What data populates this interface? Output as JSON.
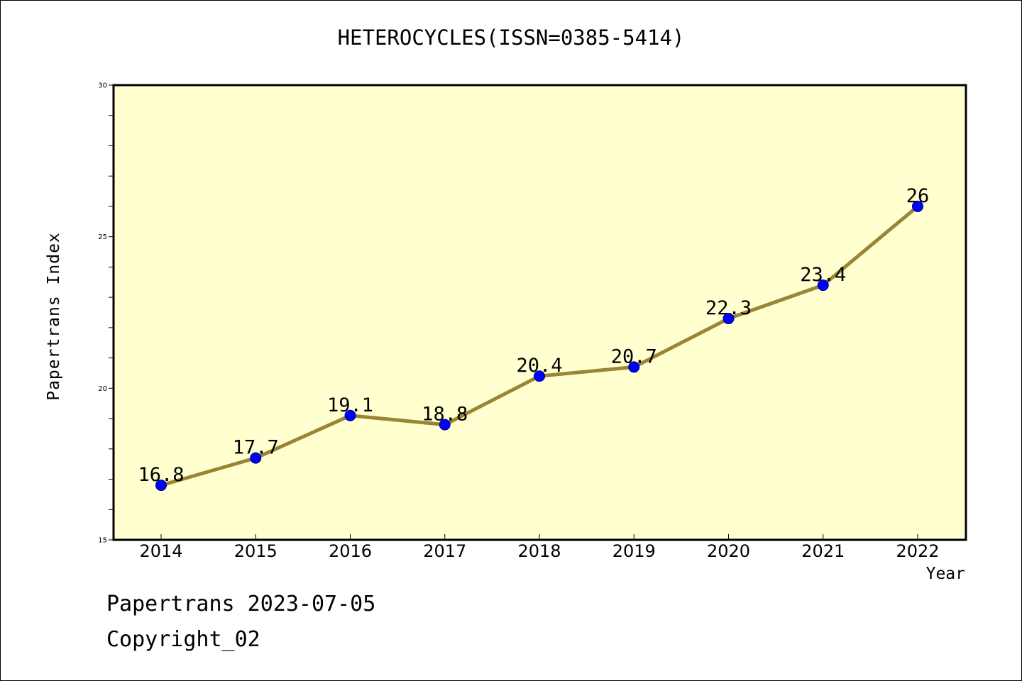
{
  "chart_data": {
    "type": "line",
    "title": "HETEROCYCLES(ISSN=0385-5414)",
    "xlabel": "Year",
    "ylabel": "Papertrans Index",
    "categories": [
      "2014",
      "2015",
      "2016",
      "2017",
      "2018",
      "2019",
      "2020",
      "2021",
      "2022"
    ],
    "values": [
      16.8,
      17.7,
      19.1,
      18.8,
      20.4,
      20.7,
      22.3,
      23.4,
      26
    ],
    "data_labels": [
      "16.8",
      "17.7",
      "19.1",
      "18.8",
      "20.4",
      "20.7",
      "22.3",
      "23.4",
      "26"
    ],
    "ylim": [
      15,
      30
    ],
    "yticks": [
      "15",
      "20",
      "25",
      "30"
    ],
    "y_minor_step": 1,
    "grid": false,
    "legend": "none",
    "colors": {
      "plot_background": "#FFFFD0",
      "line": "#9A8436",
      "marker": "#0000FF",
      "marker_edge": "#000080"
    }
  },
  "footer": {
    "date_line": "Papertrans 2023-07-05",
    "copyright_line": "Copyright_02"
  }
}
